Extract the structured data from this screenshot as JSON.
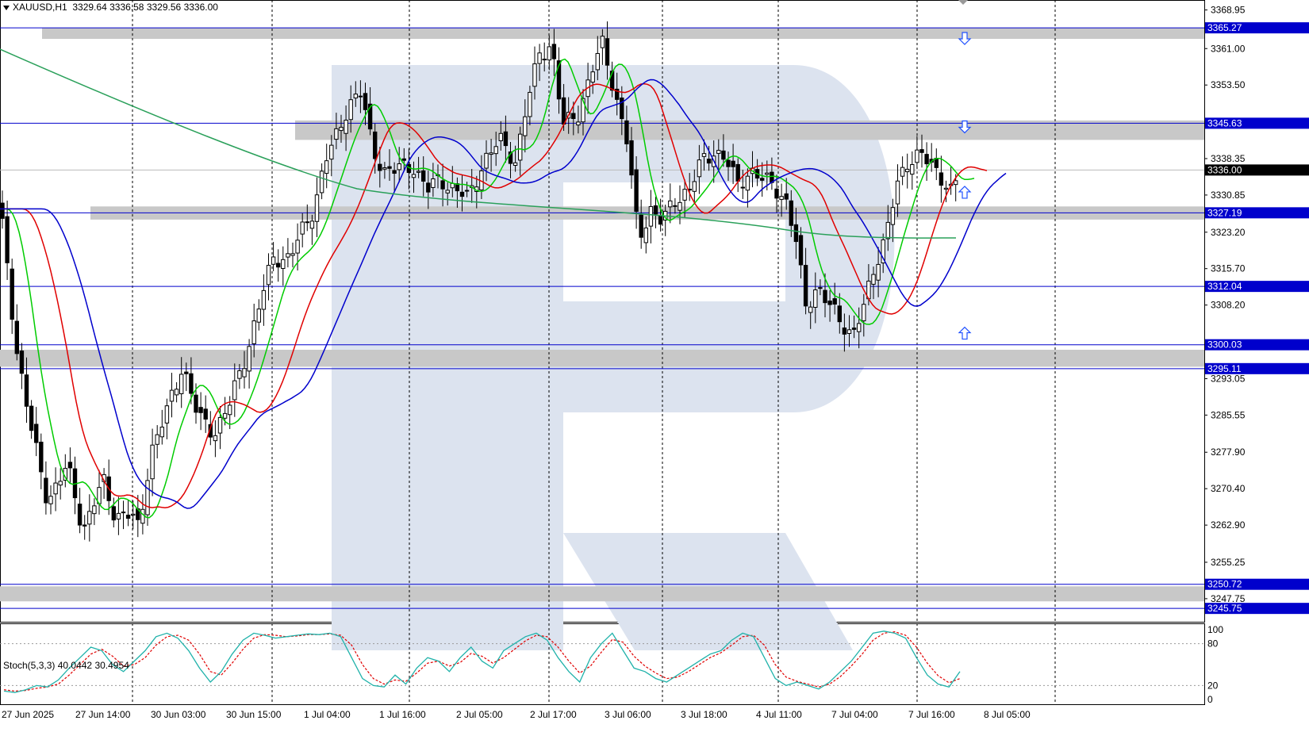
{
  "header": {
    "symbol": "XAUUSD,H1",
    "open": "3329.64",
    "high": "3336.58",
    "low": "3329.56",
    "close": "3336.00"
  },
  "stoch_header": {
    "name": "Stoch(5,3,3)",
    "main": "40.0442",
    "signal": "30.4954"
  },
  "colors": {
    "bull": "#ffffff",
    "bear": "#000000",
    "wick": "#000000",
    "ma_fast": "#00cc00",
    "ma_mid": "#e00000",
    "ma_slow": "#0000cc",
    "ma_long": "#2aa05a",
    "level_line": "#0000cc",
    "zone": "#c8c8c8",
    "stoch_main": "#20b2aa",
    "stoch_signal": "#e00000",
    "arrow": "#1e50ff",
    "watermark": "#dce3ef"
  },
  "chart_data": {
    "type": "candlestick",
    "price_axis": {
      "ylim": [
        3243.0,
        3371.0
      ],
      "ticks": [
        "3368.95",
        "3361.00",
        "3353.50",
        "3338.35",
        "3330.85",
        "3323.20",
        "3315.70",
        "3308.20",
        "3293.05",
        "3285.55",
        "3277.90",
        "3270.40",
        "3262.90",
        "3255.25",
        "3247.75"
      ]
    },
    "time_axis": {
      "labels": [
        "27 Jun 2025",
        "27 Jun 14:00",
        "30 Jun 03:00",
        "30 Jun 15:00",
        "1 Jul 04:00",
        "1 Jul 16:00",
        "2 Jul 05:00",
        "2 Jul 17:00",
        "3 Jul 06:00",
        "3 Jul 18:00",
        "4 Jul 11:00",
        "7 Jul 04:00",
        "7 Jul 16:00",
        "8 Jul 05:00"
      ]
    },
    "levels": [
      {
        "price": 3365.27,
        "label": "3365.27"
      },
      {
        "price": 3345.63,
        "label": "3345.63"
      },
      {
        "price": 3336.0,
        "label": "3336.00"
      },
      {
        "price": 3327.19,
        "label": "3327.19"
      },
      {
        "price": 3312.04,
        "label": "3312.04"
      },
      {
        "price": 3300.03,
        "label": "3300.03"
      },
      {
        "price": 3295.11,
        "label": "3295.11"
      },
      {
        "price": 3250.72,
        "label": "3250.72"
      },
      {
        "price": 3245.75,
        "label": "3245.75"
      }
    ],
    "zones": [
      {
        "from": 3363.0,
        "to": 3365.3
      },
      {
        "from": 3342.2,
        "to": 3346.2
      },
      {
        "from": 3325.8,
        "to": 3328.5
      },
      {
        "from": 3295.5,
        "to": 3299.0
      },
      {
        "from": 3247.2,
        "to": 3250.3
      }
    ],
    "arrows": [
      {
        "dir": "down",
        "price": 3363.0
      },
      {
        "dir": "down",
        "price": 3344.8
      },
      {
        "dir": "up",
        "price": 3331.5
      },
      {
        "dir": "up",
        "price": 3302.5
      }
    ],
    "stoch_axis": {
      "ylim": [
        0,
        100
      ],
      "ticks": [
        "100",
        "80",
        "20",
        "0"
      ]
    },
    "stochastic": {
      "main": [
        12,
        10,
        14,
        20,
        18,
        28,
        45,
        60,
        75,
        70,
        50,
        40,
        55,
        70,
        90,
        95,
        88,
        70,
        45,
        25,
        40,
        65,
        85,
        95,
        92,
        88,
        90,
        92,
        94,
        93,
        95,
        90,
        60,
        30,
        20,
        18,
        35,
        22,
        45,
        60,
        55,
        40,
        60,
        75,
        55,
        45,
        70,
        80,
        90,
        95,
        85,
        60,
        40,
        25,
        60,
        80,
        95,
        70,
        45,
        40,
        30,
        25,
        35,
        45,
        55,
        65,
        70,
        85,
        95,
        90,
        60,
        30,
        20,
        25,
        20,
        15,
        25,
        40,
        55,
        75,
        95,
        98,
        95,
        88,
        60,
        35,
        22,
        18,
        40
      ],
      "signal": [
        14,
        12,
        13,
        16,
        18,
        22,
        35,
        50,
        65,
        72,
        62,
        48,
        50,
        60,
        78,
        90,
        92,
        85,
        65,
        40,
        35,
        52,
        72,
        88,
        93,
        92,
        90,
        91,
        93,
        93,
        94,
        92,
        78,
        50,
        30,
        22,
        28,
        26,
        38,
        52,
        55,
        48,
        53,
        66,
        62,
        52,
        60,
        72,
        84,
        92,
        90,
        75,
        55,
        38,
        48,
        68,
        86,
        82,
        62,
        48,
        38,
        30,
        32,
        40,
        50,
        60,
        67,
        78,
        90,
        92,
        78,
        50,
        32,
        26,
        22,
        18,
        22,
        33,
        48,
        65,
        85,
        95,
        97,
        92,
        75,
        52,
        34,
        24,
        30
      ]
    }
  }
}
